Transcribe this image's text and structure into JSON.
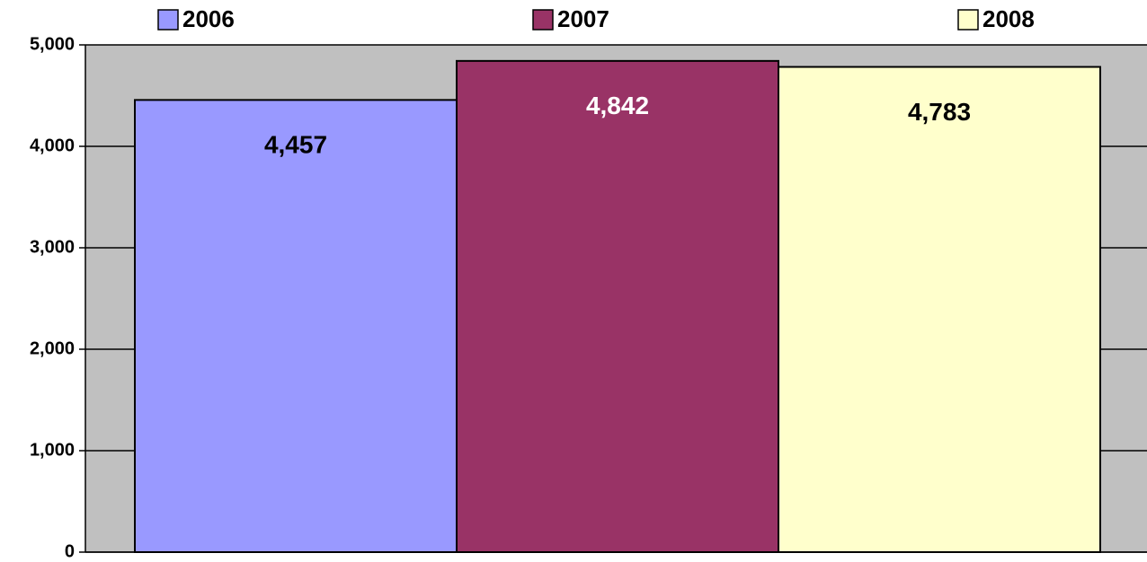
{
  "chart_data": {
    "type": "bar",
    "categories": [
      null
    ],
    "series": [
      {
        "name": "2006",
        "color": "#9999ff",
        "values": [
          4457
        ],
        "value_labels": [
          "4,457"
        ]
      },
      {
        "name": "2007",
        "color": "#993366",
        "values": [
          4842
        ],
        "value_labels": [
          "4,842"
        ]
      },
      {
        "name": "2008",
        "color": "#ffffcc",
        "values": [
          4783
        ],
        "value_labels": [
          "4,783"
        ]
      }
    ],
    "ylim": [
      0,
      5000
    ],
    "yticks": [
      0,
      {
        "value": 1000,
        "label": "1,000"
      },
      {
        "value": 2000,
        "label": "2,000"
      },
      {
        "value": 3000,
        "label": "3,000"
      },
      {
        "value": 4000,
        "label": "4,000"
      },
      {
        "value": 5000,
        "label": "5,000"
      }
    ],
    "grid": true,
    "legend": "top",
    "background": "#c0c0c0"
  }
}
